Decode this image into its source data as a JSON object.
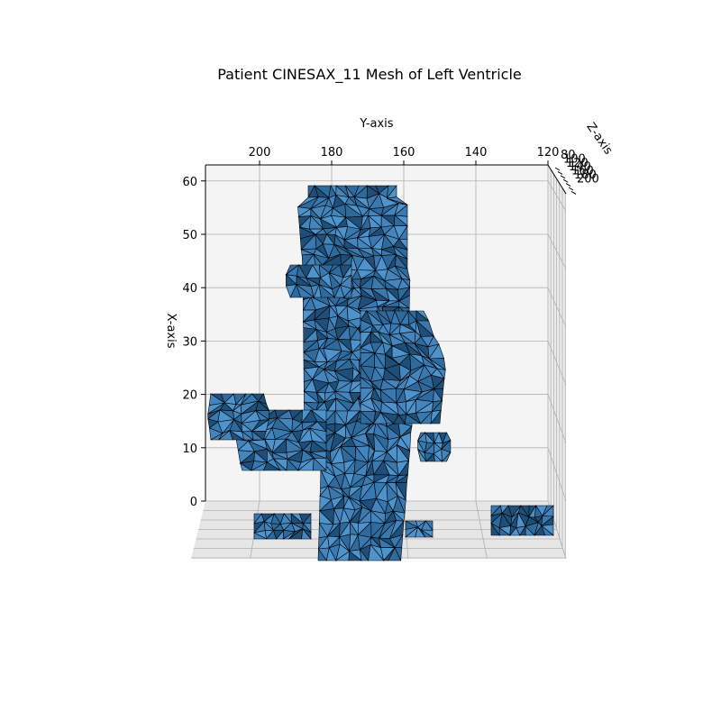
{
  "chart_data": {
    "type": "surface3d",
    "title": "Patient CINESAX_11 Mesh of Left Ventricle",
    "xlabel": "X-axis",
    "ylabel": "Y-axis",
    "zlabel": "Z-axis",
    "xticks": [
      "0",
      "10",
      "20",
      "30",
      "40",
      "50",
      "60"
    ],
    "yticks": [
      "200",
      "180",
      "160",
      "140",
      "120"
    ],
    "zticks": [
      "80",
      "100",
      "120",
      "140",
      "160",
      "180",
      "200"
    ],
    "xlim": [
      0,
      63
    ],
    "ylim": [
      215,
      120
    ],
    "zlim": [
      80,
      200
    ],
    "grid": true,
    "colors": {
      "face": "#3a78b0",
      "face_light": "#4f93cc",
      "face_dark": "#1f4f78",
      "edge": "#000000",
      "pane": "#f2f2f2",
      "grid": "#b0b0b0"
    },
    "blobs": [
      {
        "y": [
          183,
          155
        ],
        "x": [
          0,
          61
        ],
        "kind": "column"
      },
      {
        "y": [
          166,
          145
        ],
        "x": [
          9,
          36
        ],
        "kind": "side"
      },
      {
        "y": [
          190,
          170
        ],
        "x": [
          40,
          45
        ],
        "kind": "lip"
      },
      {
        "y": [
          212,
          198
        ],
        "x": [
          14,
          21
        ],
        "kind": "blob"
      },
      {
        "y": [
          200,
          178
        ],
        "x": [
          7,
          16
        ],
        "kind": "blob"
      },
      {
        "y": [
          157,
          146
        ],
        "x": [
          8,
          13
        ],
        "kind": "blob"
      },
      {
        "y": [
          136,
          124
        ],
        "x": [
          -6,
          -1
        ],
        "kind": "blob"
      }
    ]
  }
}
